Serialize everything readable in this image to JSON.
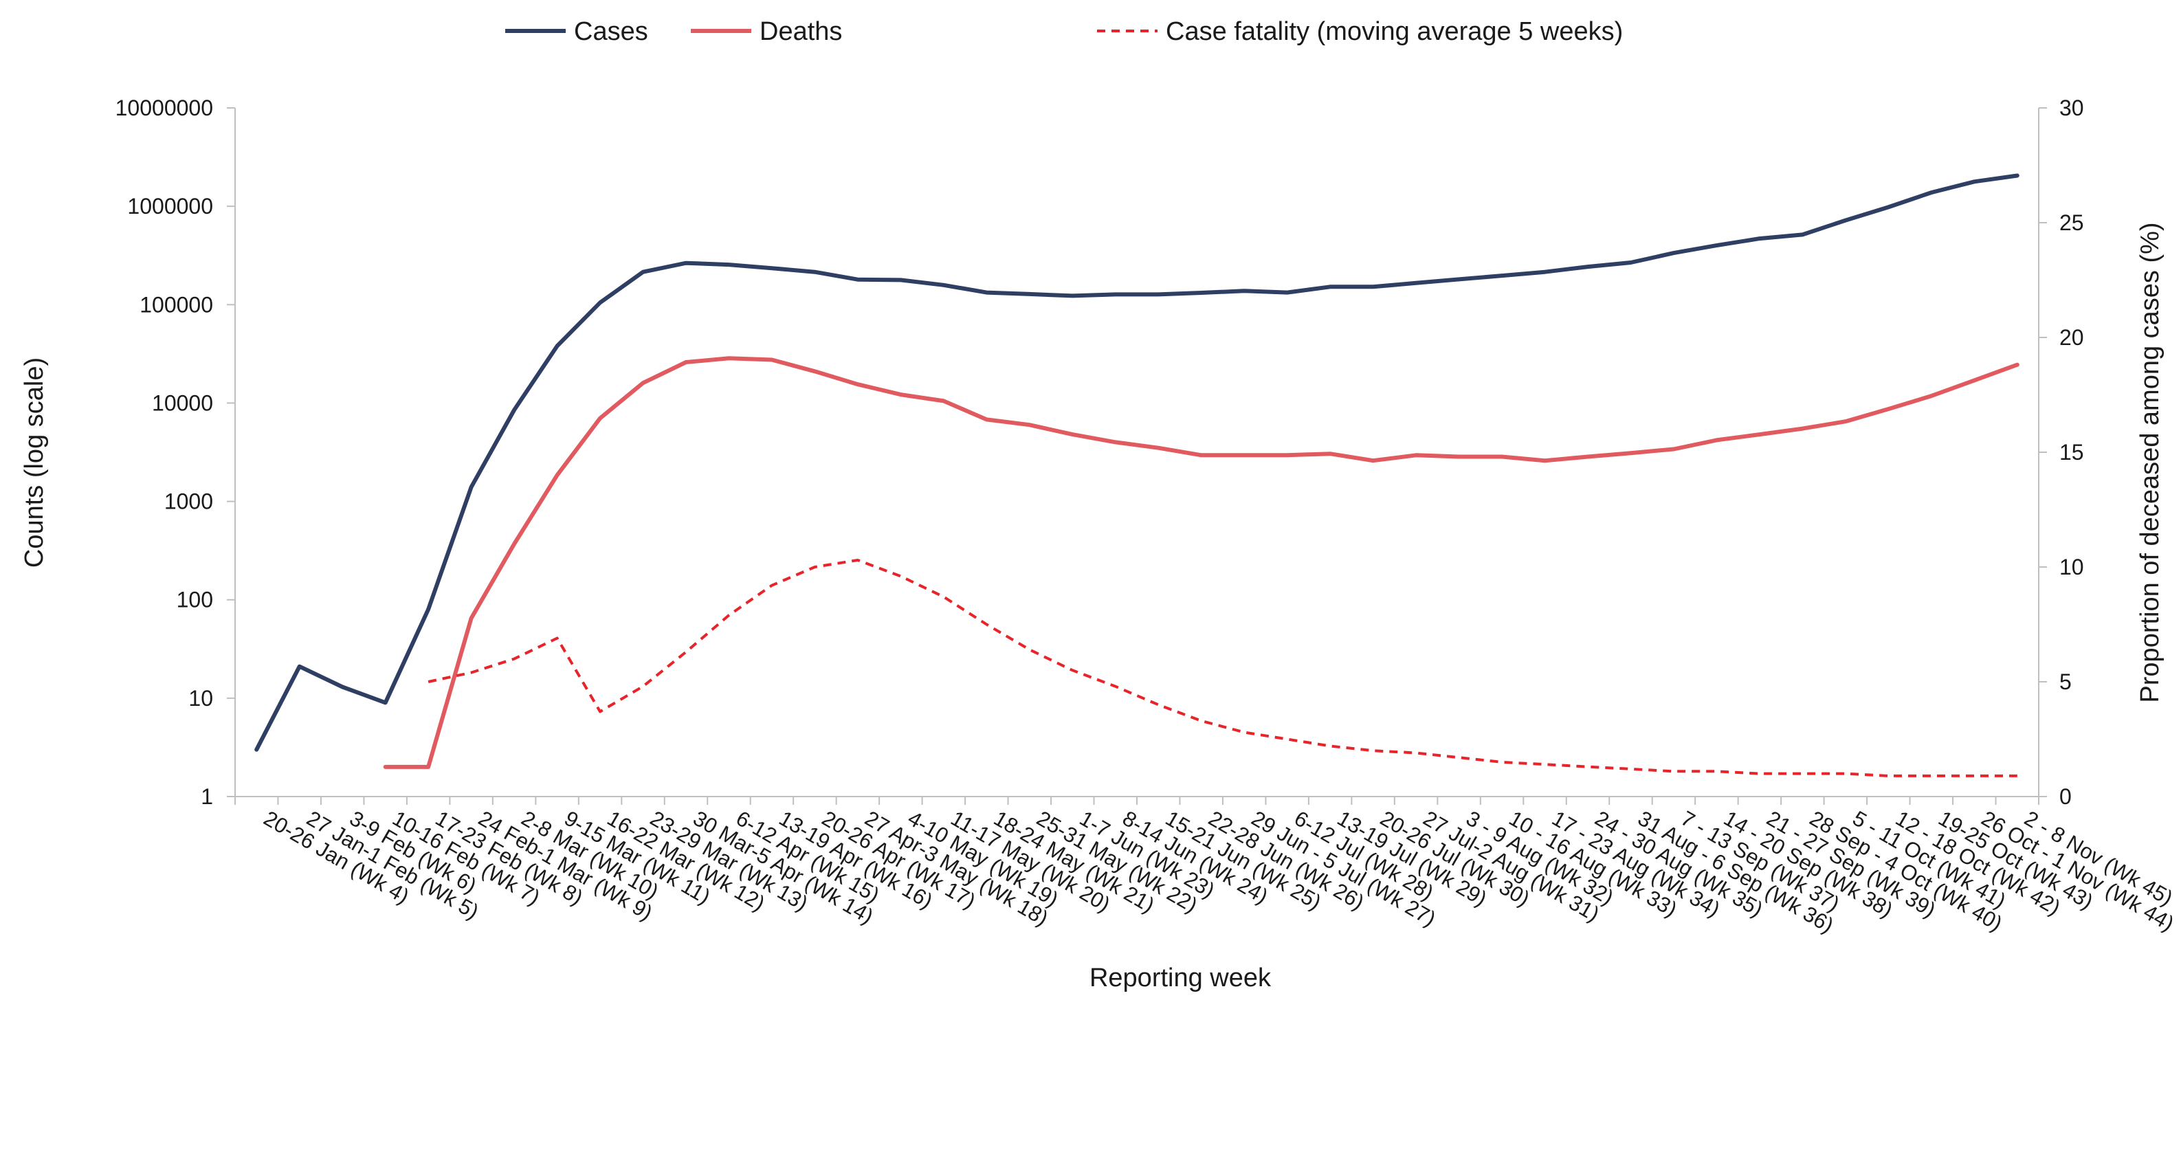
{
  "chart_data": {
    "type": "line",
    "xlabel": "Reporting week",
    "ylabel": "Counts (log scale)",
    "y2label": "Proportion of deceased among cases (%)",
    "yscale": "log",
    "ylim": [
      1,
      10000000
    ],
    "y_ticks": [
      "1",
      "10",
      "100",
      "1000",
      "10000",
      "100000",
      "1000000",
      "10000000"
    ],
    "y2lim": [
      0,
      30
    ],
    "y2_ticks": [
      "0",
      "5",
      "10",
      "15",
      "20",
      "25",
      "30"
    ],
    "grid": false,
    "legend_position": "top",
    "categories": [
      "20-26 Jan (Wk 4)",
      "27 Jan-1 Feb (Wk 5)",
      "3-9 Feb (Wk 6)",
      "10-16 Feb (Wk 7)",
      "17-23 Feb (Wk 8)",
      "24 Feb-1 Mar (Wk 9)",
      "2-8 Mar (Wk 10)",
      "9-15 Mar (Wk 11)",
      "16-22 Mar (Wk 12)",
      "23-29 Mar (Wk 13)",
      "30 Mar-5 Apr (Wk 14)",
      "6-12 Apr (Wk 15)",
      "13-19 Apr (Wk 16)",
      "20-26 Apr (Wk 17)",
      "27 Apr-3 May (Wk 18)",
      "4-10 May (Wk 19)",
      "11-17 May (Wk 20)",
      "18-24 May (Wk 21)",
      "25-31 May (Wk 22)",
      "1-7 Jun (Wk 23)",
      "8-14 Jun (Wk 24)",
      "15-21 Jun (Wk 25)",
      "22-28 Jun (Wk 26)",
      "29 Jun - 5 Jul (Wk 27)",
      "6-12 Jul (Wk 28)",
      "13-19 Jul (Wk 29)",
      "20-26 Jul (Wk 30)",
      "27 Jul-2 Aug (Wk 31)",
      "3 - 9 Aug (Wk 32)",
      "10 - 16 Aug (Wk 33)",
      "17 - 23 Aug (Wk 34)",
      "24 - 30 Aug (Wk 35)",
      "31 Aug - 6 Sep (Wk 36)",
      "7 - 13 Sep (Wk 37)",
      "14 - 20 Sep (Wk 38)",
      "21 - 27 Sep (Wk 39)",
      "28 Sep - 4 Oct (Wk 40)",
      "5 - 11 Oct (Wk 41)",
      "12 - 18 Oct (Wk 42)",
      "19-25 Oct (Wk 43)",
      "26 Oct - 1 Nov (Wk 44)",
      "2 - 8 Nov (Wk 45)"
    ],
    "series": [
      {
        "name": "Cases",
        "axis": "left",
        "color": "#2f3e63",
        "style": "solid",
        "values": [
          3,
          21,
          13,
          9,
          80,
          1400,
          8500,
          38000,
          105000,
          215000,
          265000,
          255000,
          235000,
          215000,
          180000,
          178000,
          158000,
          133000,
          128000,
          123000,
          127000,
          127000,
          132000,
          138000,
          133000,
          152000,
          152000,
          166000,
          181000,
          197000,
          215000,
          243000,
          268000,
          335000,
          400000,
          470000,
          515000,
          720000,
          980000,
          1380000,
          1780000,
          2050000
        ]
      },
      {
        "name": "Deaths",
        "axis": "left",
        "color": "#e05a5f",
        "style": "solid",
        "values": [
          null,
          null,
          null,
          2,
          2,
          65,
          370,
          1850,
          7000,
          16000,
          26000,
          28500,
          27500,
          21000,
          15500,
          12200,
          10500,
          6800,
          6000,
          4800,
          4000,
          3500,
          2950,
          2950,
          2950,
          3050,
          2600,
          2950,
          2850,
          2850,
          2600,
          2850,
          3100,
          3400,
          4200,
          4800,
          5500,
          6500,
          8700,
          11800,
          17000,
          24500
        ]
      },
      {
        "name": "Case fatality (moving average 5 weeks)",
        "axis": "right",
        "color": "#e8242b",
        "style": "dashed",
        "values": [
          null,
          null,
          null,
          null,
          5.0,
          5.4,
          6.0,
          6.9,
          3.7,
          4.8,
          6.3,
          7.9,
          9.2,
          10.0,
          10.3,
          9.6,
          8.7,
          7.5,
          6.4,
          5.5,
          4.8,
          4.0,
          3.3,
          2.8,
          2.5,
          2.2,
          2.0,
          1.9,
          1.7,
          1.5,
          1.4,
          1.3,
          1.2,
          1.1,
          1.1,
          1.0,
          1.0,
          1.0,
          0.9,
          0.9,
          0.9,
          0.9
        ]
      }
    ]
  }
}
